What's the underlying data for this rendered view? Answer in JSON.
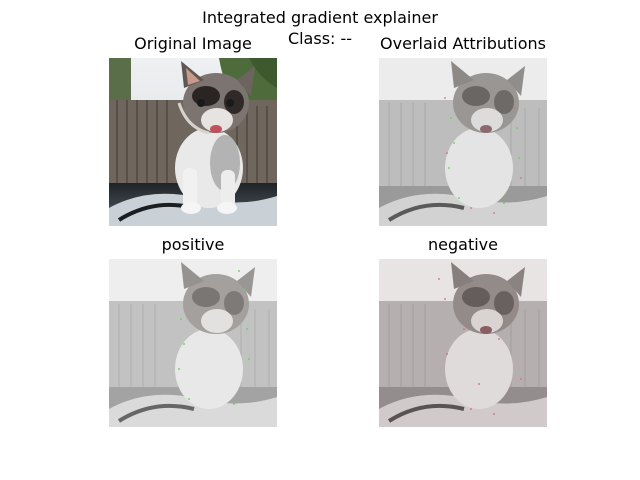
{
  "figure": {
    "suptitle_line1": "Integrated gradient explainer",
    "suptitle_line2": "Class: --",
    "panels": [
      {
        "title": "Original Image",
        "image": "kitten-photo"
      },
      {
        "title": "Overlaid Attributions",
        "image": "kitten-attribution-overlay"
      },
      {
        "title": "positive",
        "image": "kitten-positive-attribution"
      },
      {
        "title": "negative",
        "image": "kitten-negative-attribution"
      }
    ]
  },
  "colors": {
    "background": "#ffffff",
    "positive_attribution": "#5fd35f",
    "negative_attribution": "#e26a6a"
  }
}
